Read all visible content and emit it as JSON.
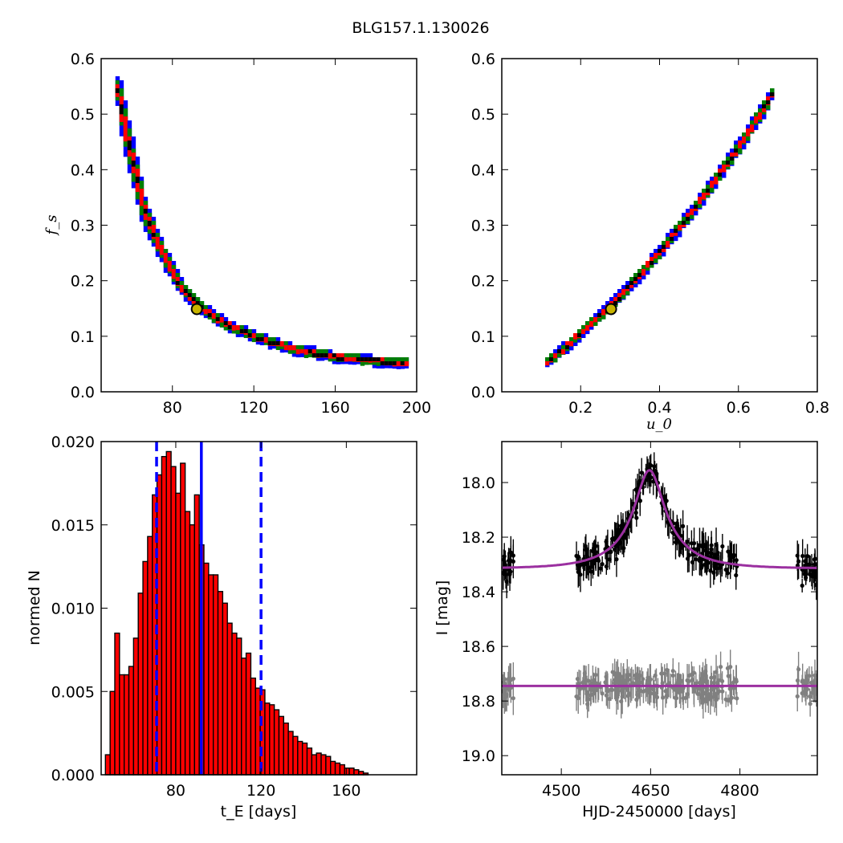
{
  "title": "BLG157.1.130026",
  "colors": {
    "blue": "#0000ff",
    "green": "#007f00",
    "red": "#ff0000",
    "black": "#000000",
    "best_fit_marker": "#c8b400",
    "model_line": "#9b30a0",
    "data_gray": "#808080"
  },
  "chart_data": [
    {
      "id": "fs_vs_tE",
      "type": "heatmap",
      "title": "",
      "xlabel": "",
      "ylabel": "f_s",
      "xlim": [
        45,
        200
      ],
      "ylim": [
        0.0,
        0.6
      ],
      "xticks": [
        "80",
        "120",
        "160",
        "200"
      ],
      "yticks": [
        "0.0",
        "0.1",
        "0.2",
        "0.3",
        "0.4",
        "0.5",
        "0.6"
      ],
      "confidence_levels": [
        {
          "name": "",
          "color": "blue"
        },
        {
          "name": "",
          "color": "green"
        },
        {
          "name": "",
          "color": "red"
        },
        {
          "name": "",
          "color": "black"
        }
      ],
      "ridge": [
        [
          52,
          0.545
        ],
        [
          58,
          0.44
        ],
        [
          65,
          0.33
        ],
        [
          72,
          0.265
        ],
        [
          82,
          0.195
        ],
        [
          92,
          0.155
        ],
        [
          105,
          0.122
        ],
        [
          120,
          0.098
        ],
        [
          140,
          0.075
        ],
        [
          160,
          0.062
        ],
        [
          180,
          0.055
        ],
        [
          195,
          0.053
        ]
      ],
      "best_fit": {
        "x": 92,
        "y": 0.149
      }
    },
    {
      "id": "fs_vs_u0",
      "type": "heatmap",
      "title": "",
      "xlabel": "u_0",
      "ylabel": "",
      "xlim": [
        0.0,
        0.8
      ],
      "ylim": [
        0.0,
        0.6
      ],
      "xticks": [
        "0.2",
        "0.4",
        "0.6",
        "0.8"
      ],
      "yticks": [
        "0.0",
        "0.1",
        "0.2",
        "0.3",
        "0.4",
        "0.5",
        "0.6"
      ],
      "confidence_levels": [
        {
          "name": "",
          "color": "blue"
        },
        {
          "name": "",
          "color": "green"
        },
        {
          "name": "",
          "color": "red"
        },
        {
          "name": "",
          "color": "black"
        }
      ],
      "ridge": [
        [
          0.11,
          0.053
        ],
        [
          0.15,
          0.075
        ],
        [
          0.2,
          0.11
        ],
        [
          0.25,
          0.14
        ],
        [
          0.3,
          0.175
        ],
        [
          0.35,
          0.215
        ],
        [
          0.4,
          0.255
        ],
        [
          0.45,
          0.3
        ],
        [
          0.5,
          0.345
        ],
        [
          0.55,
          0.395
        ],
        [
          0.6,
          0.445
        ],
        [
          0.65,
          0.5
        ],
        [
          0.68,
          0.535
        ]
      ],
      "best_fit": {
        "x": 0.277,
        "y": 0.149
      }
    },
    {
      "id": "tE_histogram",
      "type": "bar",
      "title": "",
      "xlabel": "t_E [days]",
      "ylabel": "normed N",
      "xlim": [
        45,
        193
      ],
      "ylim": [
        0.0,
        0.02
      ],
      "xticks": [
        "80",
        "120",
        "160"
      ],
      "yticks": [
        "0.000",
        "0.005",
        "0.010",
        "0.015",
        "0.020"
      ],
      "bin_start": 47,
      "bin_width": 2.2,
      "values": [
        0.0012,
        0.005,
        0.0085,
        0.006,
        0.006,
        0.0065,
        0.0082,
        0.0109,
        0.0128,
        0.0143,
        0.0168,
        0.018,
        0.0191,
        0.0194,
        0.0185,
        0.0169,
        0.0187,
        0.0158,
        0.015,
        0.0168,
        0.0138,
        0.0127,
        0.012,
        0.012,
        0.011,
        0.0103,
        0.0091,
        0.0085,
        0.0082,
        0.007,
        0.0073,
        0.0058,
        0.0052,
        0.0051,
        0.0043,
        0.0042,
        0.0039,
        0.0035,
        0.0031,
        0.0026,
        0.0023,
        0.002,
        0.0019,
        0.0016,
        0.0012,
        0.0013,
        0.0012,
        0.0011,
        0.0008,
        0.0007,
        0.0006,
        0.0004,
        0.0004,
        0.0003,
        0.0002,
        0.0001
      ],
      "color": "red",
      "median": 92,
      "interval": [
        71,
        120
      ]
    },
    {
      "id": "light_curve",
      "type": "scatter",
      "title": "",
      "xlabel": "HJD-2450000 [days]",
      "ylabel": "I [mag]",
      "xlim": [
        4400,
        4930
      ],
      "ylim": [
        19.07,
        17.85
      ],
      "xticks": [
        "4500",
        "4650",
        "4800"
      ],
      "yticks": [
        "18.0",
        "18.2",
        "18.4",
        "18.6",
        "18.8",
        "19.0"
      ],
      "model": {
        "t0": 4648,
        "baseline_mag": 18.315,
        "peak_mag": 17.955,
        "tE": 92,
        "u0": 0.277
      },
      "residual_level": 18.745,
      "series": [
        {
          "name": "",
          "color": "black"
        },
        {
          "name": "",
          "color": "data_gray"
        }
      ],
      "observing_seasons": [
        [
          4400,
          4420
        ],
        [
          4525,
          4795
        ],
        [
          4895,
          4930
        ]
      ]
    }
  ]
}
